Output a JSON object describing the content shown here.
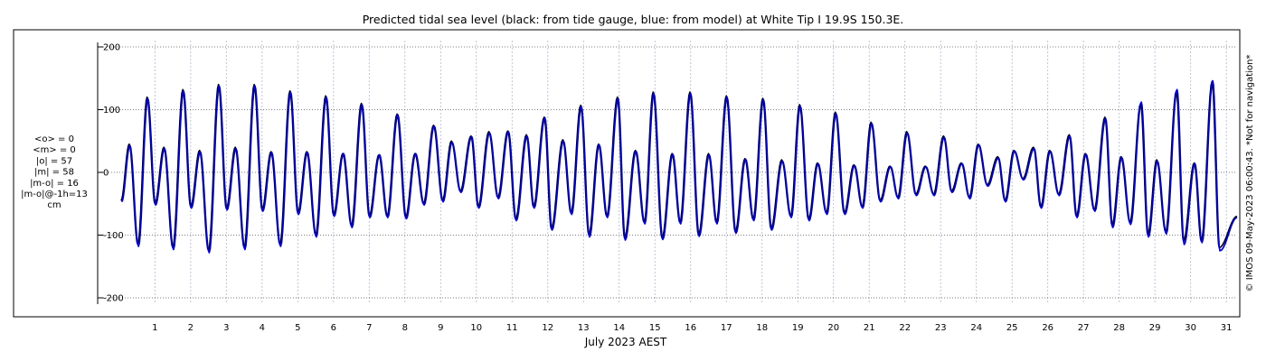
{
  "chart_data": {
    "type": "line",
    "title": "Predicted tidal sea level (black: from tide gauge, blue: from model) at White Tip I 19.9S 150.3E.",
    "xlabel": "July 2023 AEST",
    "ylabel": "",
    "xlim": [
      -0.3,
      31.3
    ],
    "ylim": [
      -210,
      210
    ],
    "yticks": [
      -200,
      -100,
      0,
      100,
      200
    ],
    "xticks": [
      1,
      2,
      3,
      4,
      5,
      6,
      7,
      8,
      9,
      10,
      11,
      12,
      13,
      14,
      15,
      16,
      17,
      18,
      19,
      20,
      21,
      22,
      23,
      24,
      25,
      26,
      27,
      28,
      29,
      30,
      31
    ],
    "grid": true,
    "stats_lines": [
      "<o> = 0",
      "<m> = 0",
      "|o| = 57",
      "|m| = 58",
      "|m-o| = 16",
      "|m-o|@-1h=13",
      "cm"
    ],
    "copyright": "© IMOS 09-May-2023 06:00:43. *Not for navigation*",
    "colors": {
      "observed": "#000000",
      "model": "#0000cc",
      "grid": "#555555",
      "vgrid": "#b0b8d0"
    },
    "series": [
      {
        "name": "tide gauge",
        "color": "#000000",
        "highs": [
          [
            0.28,
            45
          ],
          [
            0.78,
            120
          ],
          [
            1.25,
            40
          ],
          [
            1.78,
            132
          ],
          [
            2.25,
            35
          ],
          [
            2.78,
            140
          ],
          [
            3.25,
            40
          ],
          [
            3.78,
            140
          ],
          [
            4.25,
            33
          ],
          [
            4.78,
            130
          ],
          [
            5.25,
            33
          ],
          [
            5.78,
            122
          ],
          [
            6.26,
            30
          ],
          [
            6.78,
            110
          ],
          [
            7.27,
            28
          ],
          [
            7.78,
            93
          ],
          [
            8.28,
            30
          ],
          [
            8.8,
            75
          ],
          [
            9.3,
            50
          ],
          [
            9.85,
            58
          ],
          [
            10.35,
            65
          ],
          [
            10.88,
            66
          ],
          [
            11.4,
            60
          ],
          [
            11.9,
            88
          ],
          [
            12.42,
            52
          ],
          [
            12.92,
            107
          ],
          [
            13.42,
            45
          ],
          [
            13.95,
            120
          ],
          [
            14.45,
            35
          ],
          [
            14.95,
            128
          ],
          [
            15.48,
            30
          ],
          [
            15.98,
            128
          ],
          [
            16.5,
            30
          ],
          [
            17.0,
            122
          ],
          [
            17.52,
            22
          ],
          [
            18.02,
            118
          ],
          [
            18.55,
            20
          ],
          [
            19.05,
            108
          ],
          [
            19.55,
            15
          ],
          [
            20.05,
            96
          ],
          [
            20.57,
            12
          ],
          [
            21.05,
            80
          ],
          [
            21.58,
            10
          ],
          [
            22.05,
            65
          ],
          [
            22.57,
            10
          ],
          [
            23.08,
            58
          ],
          [
            23.58,
            15
          ],
          [
            24.05,
            45
          ],
          [
            24.6,
            25
          ],
          [
            25.05,
            35
          ],
          [
            25.6,
            40
          ],
          [
            26.05,
            35
          ],
          [
            26.6,
            60
          ],
          [
            27.05,
            30
          ],
          [
            27.6,
            88
          ],
          [
            28.05,
            25
          ],
          [
            28.6,
            110
          ],
          [
            29.05,
            20
          ],
          [
            29.6,
            130
          ],
          [
            30.1,
            15
          ],
          [
            30.6,
            145
          ]
        ],
        "lows": [
          [
            0.05,
            -45
          ],
          [
            0.52,
            -115
          ],
          [
            1.0,
            -50
          ],
          [
            1.5,
            -120
          ],
          [
            2.0,
            -55
          ],
          [
            2.5,
            -125
          ],
          [
            3.0,
            -58
          ],
          [
            3.5,
            -120
          ],
          [
            4.0,
            -60
          ],
          [
            4.5,
            -115
          ],
          [
            5.0,
            -65
          ],
          [
            5.5,
            -100
          ],
          [
            6.0,
            -68
          ],
          [
            6.5,
            -85
          ],
          [
            7.0,
            -70
          ],
          [
            7.5,
            -70
          ],
          [
            8.02,
            -72
          ],
          [
            8.52,
            -50
          ],
          [
            9.05,
            -45
          ],
          [
            9.55,
            -30
          ],
          [
            10.05,
            -55
          ],
          [
            10.6,
            -40
          ],
          [
            11.1,
            -75
          ],
          [
            11.6,
            -55
          ],
          [
            12.1,
            -90
          ],
          [
            12.65,
            -65
          ],
          [
            13.15,
            -100
          ],
          [
            13.65,
            -70
          ],
          [
            14.15,
            -105
          ],
          [
            14.7,
            -80
          ],
          [
            15.2,
            -105
          ],
          [
            15.7,
            -80
          ],
          [
            16.22,
            -100
          ],
          [
            16.72,
            -80
          ],
          [
            17.25,
            -95
          ],
          [
            17.75,
            -75
          ],
          [
            18.25,
            -90
          ],
          [
            18.8,
            -70
          ],
          [
            19.3,
            -75
          ],
          [
            19.8,
            -65
          ],
          [
            20.3,
            -65
          ],
          [
            20.8,
            -55
          ],
          [
            21.3,
            -45
          ],
          [
            21.8,
            -40
          ],
          [
            22.3,
            -35
          ],
          [
            22.8,
            -35
          ],
          [
            23.3,
            -30
          ],
          [
            23.8,
            -40
          ],
          [
            24.3,
            -20
          ],
          [
            24.8,
            -45
          ],
          [
            25.3,
            -10
          ],
          [
            25.8,
            -55
          ],
          [
            26.3,
            -35
          ],
          [
            26.8,
            -70
          ],
          [
            27.3,
            -60
          ],
          [
            27.8,
            -85
          ],
          [
            28.3,
            -80
          ],
          [
            28.8,
            -100
          ],
          [
            29.3,
            -95
          ],
          [
            29.8,
            -110
          ],
          [
            30.3,
            -110
          ],
          [
            30.8,
            -120
          ],
          [
            31.3,
            -70
          ]
        ]
      },
      {
        "name": "model",
        "color": "#0000cc",
        "highs": [
          [
            0.3,
            43
          ],
          [
            0.8,
            118
          ],
          [
            1.27,
            38
          ],
          [
            1.8,
            130
          ],
          [
            2.27,
            33
          ],
          [
            2.8,
            138
          ],
          [
            3.27,
            38
          ],
          [
            3.8,
            138
          ],
          [
            4.27,
            32
          ],
          [
            4.8,
            128
          ],
          [
            5.27,
            32
          ],
          [
            5.8,
            120
          ],
          [
            6.28,
            30
          ],
          [
            6.8,
            108
          ],
          [
            7.29,
            28
          ],
          [
            7.8,
            92
          ],
          [
            8.3,
            30
          ],
          [
            8.82,
            74
          ],
          [
            9.32,
            48
          ],
          [
            9.87,
            57
          ],
          [
            10.37,
            63
          ],
          [
            10.9,
            65
          ],
          [
            11.42,
            58
          ],
          [
            11.92,
            87
          ],
          [
            12.44,
            50
          ],
          [
            12.94,
            105
          ],
          [
            13.44,
            44
          ],
          [
            13.97,
            118
          ],
          [
            14.47,
            34
          ],
          [
            14.97,
            126
          ],
          [
            15.5,
            29
          ],
          [
            16.0,
            126
          ],
          [
            16.52,
            28
          ],
          [
            17.02,
            120
          ],
          [
            17.54,
            21
          ],
          [
            18.04,
            116
          ],
          [
            18.57,
            18
          ],
          [
            19.07,
            106
          ],
          [
            19.57,
            14
          ],
          [
            20.07,
            94
          ],
          [
            20.59,
            11
          ],
          [
            21.07,
            78
          ],
          [
            21.6,
            9
          ],
          [
            22.07,
            63
          ],
          [
            22.59,
            9
          ],
          [
            23.1,
            56
          ],
          [
            23.6,
            14
          ],
          [
            24.07,
            44
          ],
          [
            24.62,
            23
          ],
          [
            25.07,
            34
          ],
          [
            25.62,
            38
          ],
          [
            26.07,
            34
          ],
          [
            26.62,
            58
          ],
          [
            27.07,
            29
          ],
          [
            27.62,
            86
          ],
          [
            28.07,
            24
          ],
          [
            28.62,
            112
          ],
          [
            29.07,
            18
          ],
          [
            29.62,
            132
          ],
          [
            30.12,
            14
          ],
          [
            30.62,
            146
          ]
        ],
        "lows": [
          [
            0.07,
            -47
          ],
          [
            0.54,
            -118
          ],
          [
            1.02,
            -52
          ],
          [
            1.52,
            -123
          ],
          [
            2.02,
            -57
          ],
          [
            2.52,
            -128
          ],
          [
            3.02,
            -60
          ],
          [
            3.52,
            -123
          ],
          [
            4.02,
            -62
          ],
          [
            4.52,
            -118
          ],
          [
            5.02,
            -67
          ],
          [
            5.52,
            -103
          ],
          [
            6.02,
            -70
          ],
          [
            6.52,
            -88
          ],
          [
            7.02,
            -72
          ],
          [
            7.52,
            -72
          ],
          [
            8.04,
            -74
          ],
          [
            8.54,
            -52
          ],
          [
            9.07,
            -47
          ],
          [
            9.57,
            -32
          ],
          [
            10.07,
            -57
          ],
          [
            10.62,
            -42
          ],
          [
            11.12,
            -77
          ],
          [
            11.62,
            -57
          ],
          [
            12.12,
            -92
          ],
          [
            12.67,
            -67
          ],
          [
            13.17,
            -103
          ],
          [
            13.67,
            -72
          ],
          [
            14.17,
            -108
          ],
          [
            14.72,
            -82
          ],
          [
            15.22,
            -107
          ],
          [
            15.72,
            -82
          ],
          [
            16.24,
            -102
          ],
          [
            16.74,
            -82
          ],
          [
            17.27,
            -97
          ],
          [
            17.77,
            -77
          ],
          [
            18.27,
            -92
          ],
          [
            18.82,
            -72
          ],
          [
            19.32,
            -77
          ],
          [
            19.82,
            -67
          ],
          [
            20.32,
            -67
          ],
          [
            20.82,
            -57
          ],
          [
            21.32,
            -47
          ],
          [
            21.82,
            -42
          ],
          [
            22.32,
            -37
          ],
          [
            22.82,
            -37
          ],
          [
            23.32,
            -32
          ],
          [
            23.82,
            -42
          ],
          [
            24.32,
            -22
          ],
          [
            24.82,
            -47
          ],
          [
            25.32,
            -12
          ],
          [
            25.82,
            -57
          ],
          [
            26.32,
            -37
          ],
          [
            26.82,
            -72
          ],
          [
            27.32,
            -62
          ],
          [
            27.82,
            -88
          ],
          [
            28.32,
            -83
          ],
          [
            28.82,
            -103
          ],
          [
            29.32,
            -98
          ],
          [
            29.82,
            -115
          ],
          [
            30.32,
            -112
          ],
          [
            30.82,
            -125
          ],
          [
            31.3,
            -72
          ]
        ]
      }
    ]
  }
}
